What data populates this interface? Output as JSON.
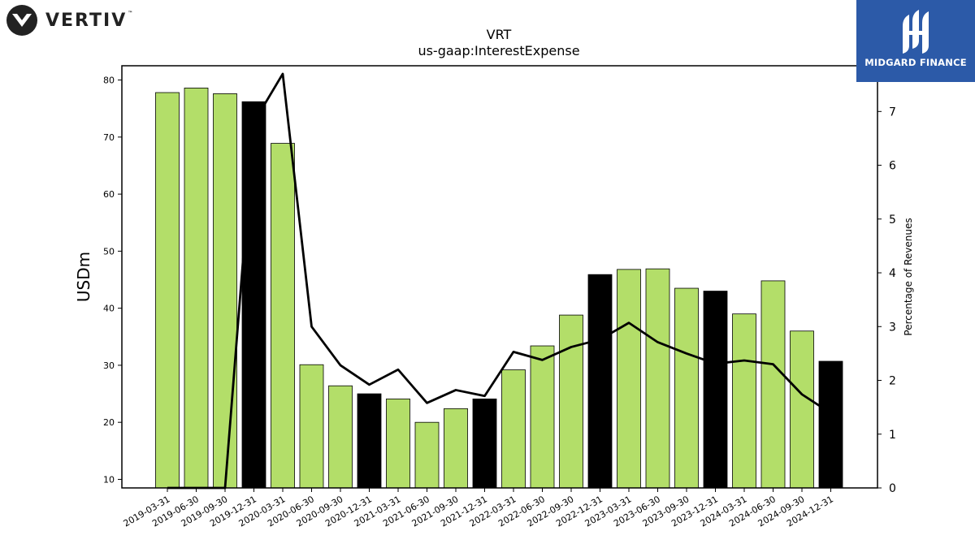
{
  "brand": {
    "name": "VERTIV",
    "tm": "™",
    "icon": "vertiv-logo-icon"
  },
  "watermark": {
    "name": "MIDGARD FINANCE",
    "icon": "midgard-logo-icon",
    "bg": "#2c5aa8"
  },
  "chart_data": {
    "type": "bar",
    "title": "VRT",
    "subtitle": "us-gaap:InterestExpense",
    "ylabel": "USDm",
    "y2label": "Percentage of Revenues",
    "ylim": [
      8.5,
      82.5
    ],
    "y2lim": [
      0,
      7.85
    ],
    "yticks": [
      10,
      20,
      30,
      40,
      50,
      60,
      70,
      80
    ],
    "y2ticks": [
      0,
      1,
      2,
      3,
      4,
      5,
      6,
      7
    ],
    "categories": [
      "2019-03-31",
      "2019-06-30",
      "2019-09-30",
      "2019-12-31",
      "2020-03-31",
      "2020-06-30",
      "2020-09-30",
      "2020-12-31",
      "2021-03-31",
      "2021-06-30",
      "2021-09-30",
      "2021-12-31",
      "2022-03-31",
      "2022-06-30",
      "2022-09-30",
      "2022-12-31",
      "2023-03-31",
      "2023-06-30",
      "2023-09-30",
      "2023-12-31",
      "2024-03-31",
      "2024-06-30",
      "2024-09-30",
      "2024-12-31"
    ],
    "series": [
      {
        "values": [
          77.8,
          78.6,
          77.6,
          76.2,
          68.9,
          30.1,
          26.4,
          25.0,
          24.1,
          20.0,
          22.4,
          24.1,
          29.2,
          33.4,
          38.8,
          45.9,
          46.8,
          46.9,
          43.5,
          43.0,
          39.0,
          44.8,
          36.0,
          30.7
        ]
      },
      {
        "type": "line",
        "axis": "right",
        "values": [
          0.0,
          0.0,
          0.0,
          6.8,
          7.7,
          3.0,
          2.28,
          1.92,
          2.2,
          1.58,
          1.82,
          1.71,
          2.53,
          2.38,
          2.62,
          2.76,
          3.07,
          2.71,
          2.5,
          2.31,
          2.37,
          2.3,
          1.74,
          1.39
        ]
      }
    ],
    "bar_colors": {
      "quarter": "#b3de69",
      "year_end": "#000000"
    },
    "line_color": "#000000",
    "grid": false,
    "legend": "none"
  }
}
